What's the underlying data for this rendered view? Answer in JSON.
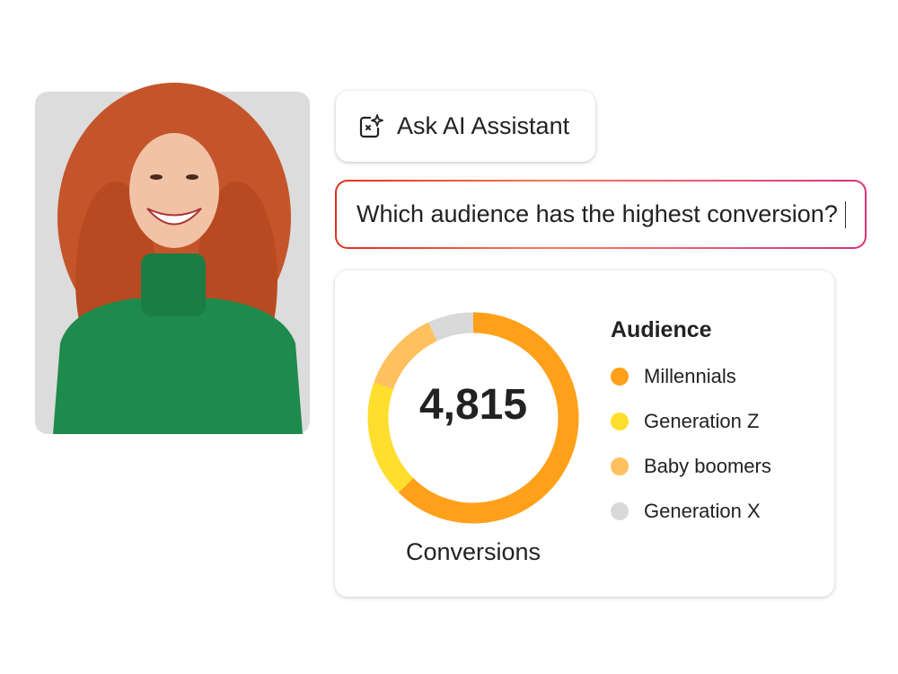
{
  "ask_button": {
    "label": "Ask AI Assistant",
    "icon": "ai-sparkle-icon"
  },
  "prompt": {
    "value": "Which audience has the highest conversion?"
  },
  "chart_data": {
    "type": "pie",
    "variant": "donut",
    "center_value": "4,815",
    "caption": "Conversions",
    "legend_title": "Audience",
    "legend_placement": "right",
    "categories": [
      "Millennials",
      "Generation Z",
      "Baby boomers",
      "Generation X"
    ],
    "values": [
      62.5,
      18,
      12.5,
      7
    ],
    "colors": [
      "#FFA01A",
      "#FFDE2E",
      "#FFC05E",
      "#D9D9D9"
    ]
  },
  "colors": {
    "prompt_border_start": "#E0301E",
    "prompt_border_end": "#D9307A",
    "photo_bg": "#DCDCDC"
  }
}
